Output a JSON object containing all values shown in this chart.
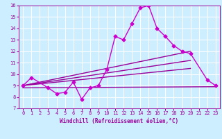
{
  "xlabel": "Windchill (Refroidissement éolien,°C)",
  "bg_color": "#cceeff",
  "line_color": "#990099",
  "grid_color": "#ffffff",
  "xlim": [
    -0.5,
    23.5
  ],
  "ylim": [
    7,
    16
  ],
  "xticks": [
    0,
    1,
    2,
    3,
    4,
    5,
    6,
    7,
    8,
    9,
    10,
    11,
    12,
    13,
    14,
    15,
    16,
    17,
    18,
    19,
    20,
    21,
    22,
    23
  ],
  "yticks": [
    7,
    8,
    9,
    10,
    11,
    12,
    13,
    14,
    15,
    16
  ],
  "main_series": {
    "x": [
      0,
      1,
      3,
      4,
      5,
      6,
      7,
      8,
      9,
      10,
      11,
      12,
      13,
      14,
      15,
      16,
      17,
      18,
      19,
      20,
      22,
      23
    ],
    "y": [
      9.0,
      9.7,
      8.8,
      8.3,
      8.4,
      9.3,
      7.8,
      8.8,
      9.0,
      10.4,
      13.3,
      13.0,
      14.4,
      15.8,
      16.0,
      14.0,
      13.3,
      12.5,
      12.0,
      11.8,
      9.5,
      9.0
    ],
    "color": "#cc00cc",
    "lw": 1.0,
    "ms": 2.5
  },
  "trend_lines": [
    {
      "x": [
        0,
        20
      ],
      "y": [
        9.0,
        12.0
      ],
      "color": "#990099",
      "lw": 1.0
    },
    {
      "x": [
        0,
        20
      ],
      "y": [
        9.0,
        11.2
      ],
      "color": "#990099",
      "lw": 1.0
    },
    {
      "x": [
        0,
        23
      ],
      "y": [
        8.8,
        8.9
      ],
      "color": "#990099",
      "lw": 1.0
    },
    {
      "x": [
        0,
        20
      ],
      "y": [
        9.0,
        10.5
      ],
      "color": "#990099",
      "lw": 1.0
    }
  ]
}
